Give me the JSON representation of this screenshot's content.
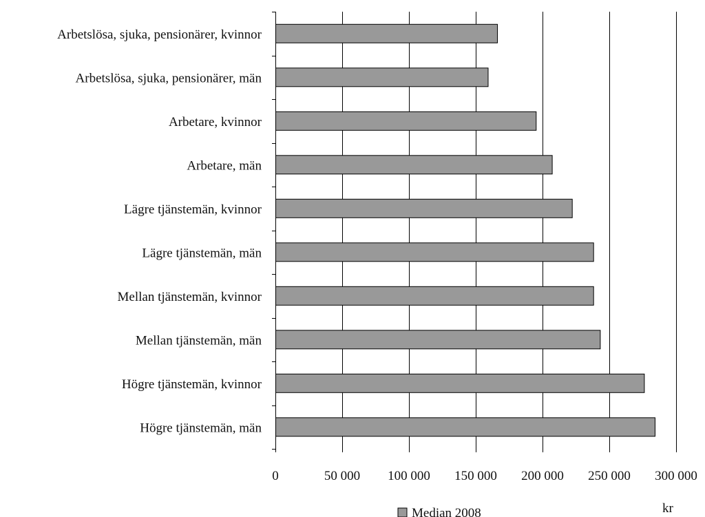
{
  "chart_data": {
    "type": "bar",
    "orientation": "horizontal",
    "categories": [
      "Arbetslösa, sjuka, pensionärer, kvinnor",
      "Arbetslösa, sjuka, pensionärer, män",
      "Arbetare, kvinnor",
      "Arbetare, män",
      "Lägre tjänstemän, kvinnor",
      "Lägre tjänstemän, män",
      "Mellan tjänstemän, kvinnor",
      "Mellan tjänstemän, män",
      "Högre tjänstemän, kvinnor",
      "Högre tjänstemän, män"
    ],
    "series": [
      {
        "name": "Median 2008",
        "values": [
          166000,
          159000,
          195000,
          207000,
          222000,
          238000,
          238000,
          243000,
          276000,
          284000
        ]
      }
    ],
    "xticks": [
      0,
      50000,
      100000,
      150000,
      200000,
      250000,
      300000
    ],
    "xtick_labels": [
      "0",
      "50 000",
      "100 000",
      "150 000",
      "200 000",
      "250 000",
      "300 000"
    ],
    "xlim": [
      0,
      300000
    ],
    "unit": "kr",
    "grid": "vertical",
    "legend": "bottom-center",
    "bar_color": "#999999",
    "bar_edge_color": "#000000",
    "grid_color": "#000000"
  }
}
